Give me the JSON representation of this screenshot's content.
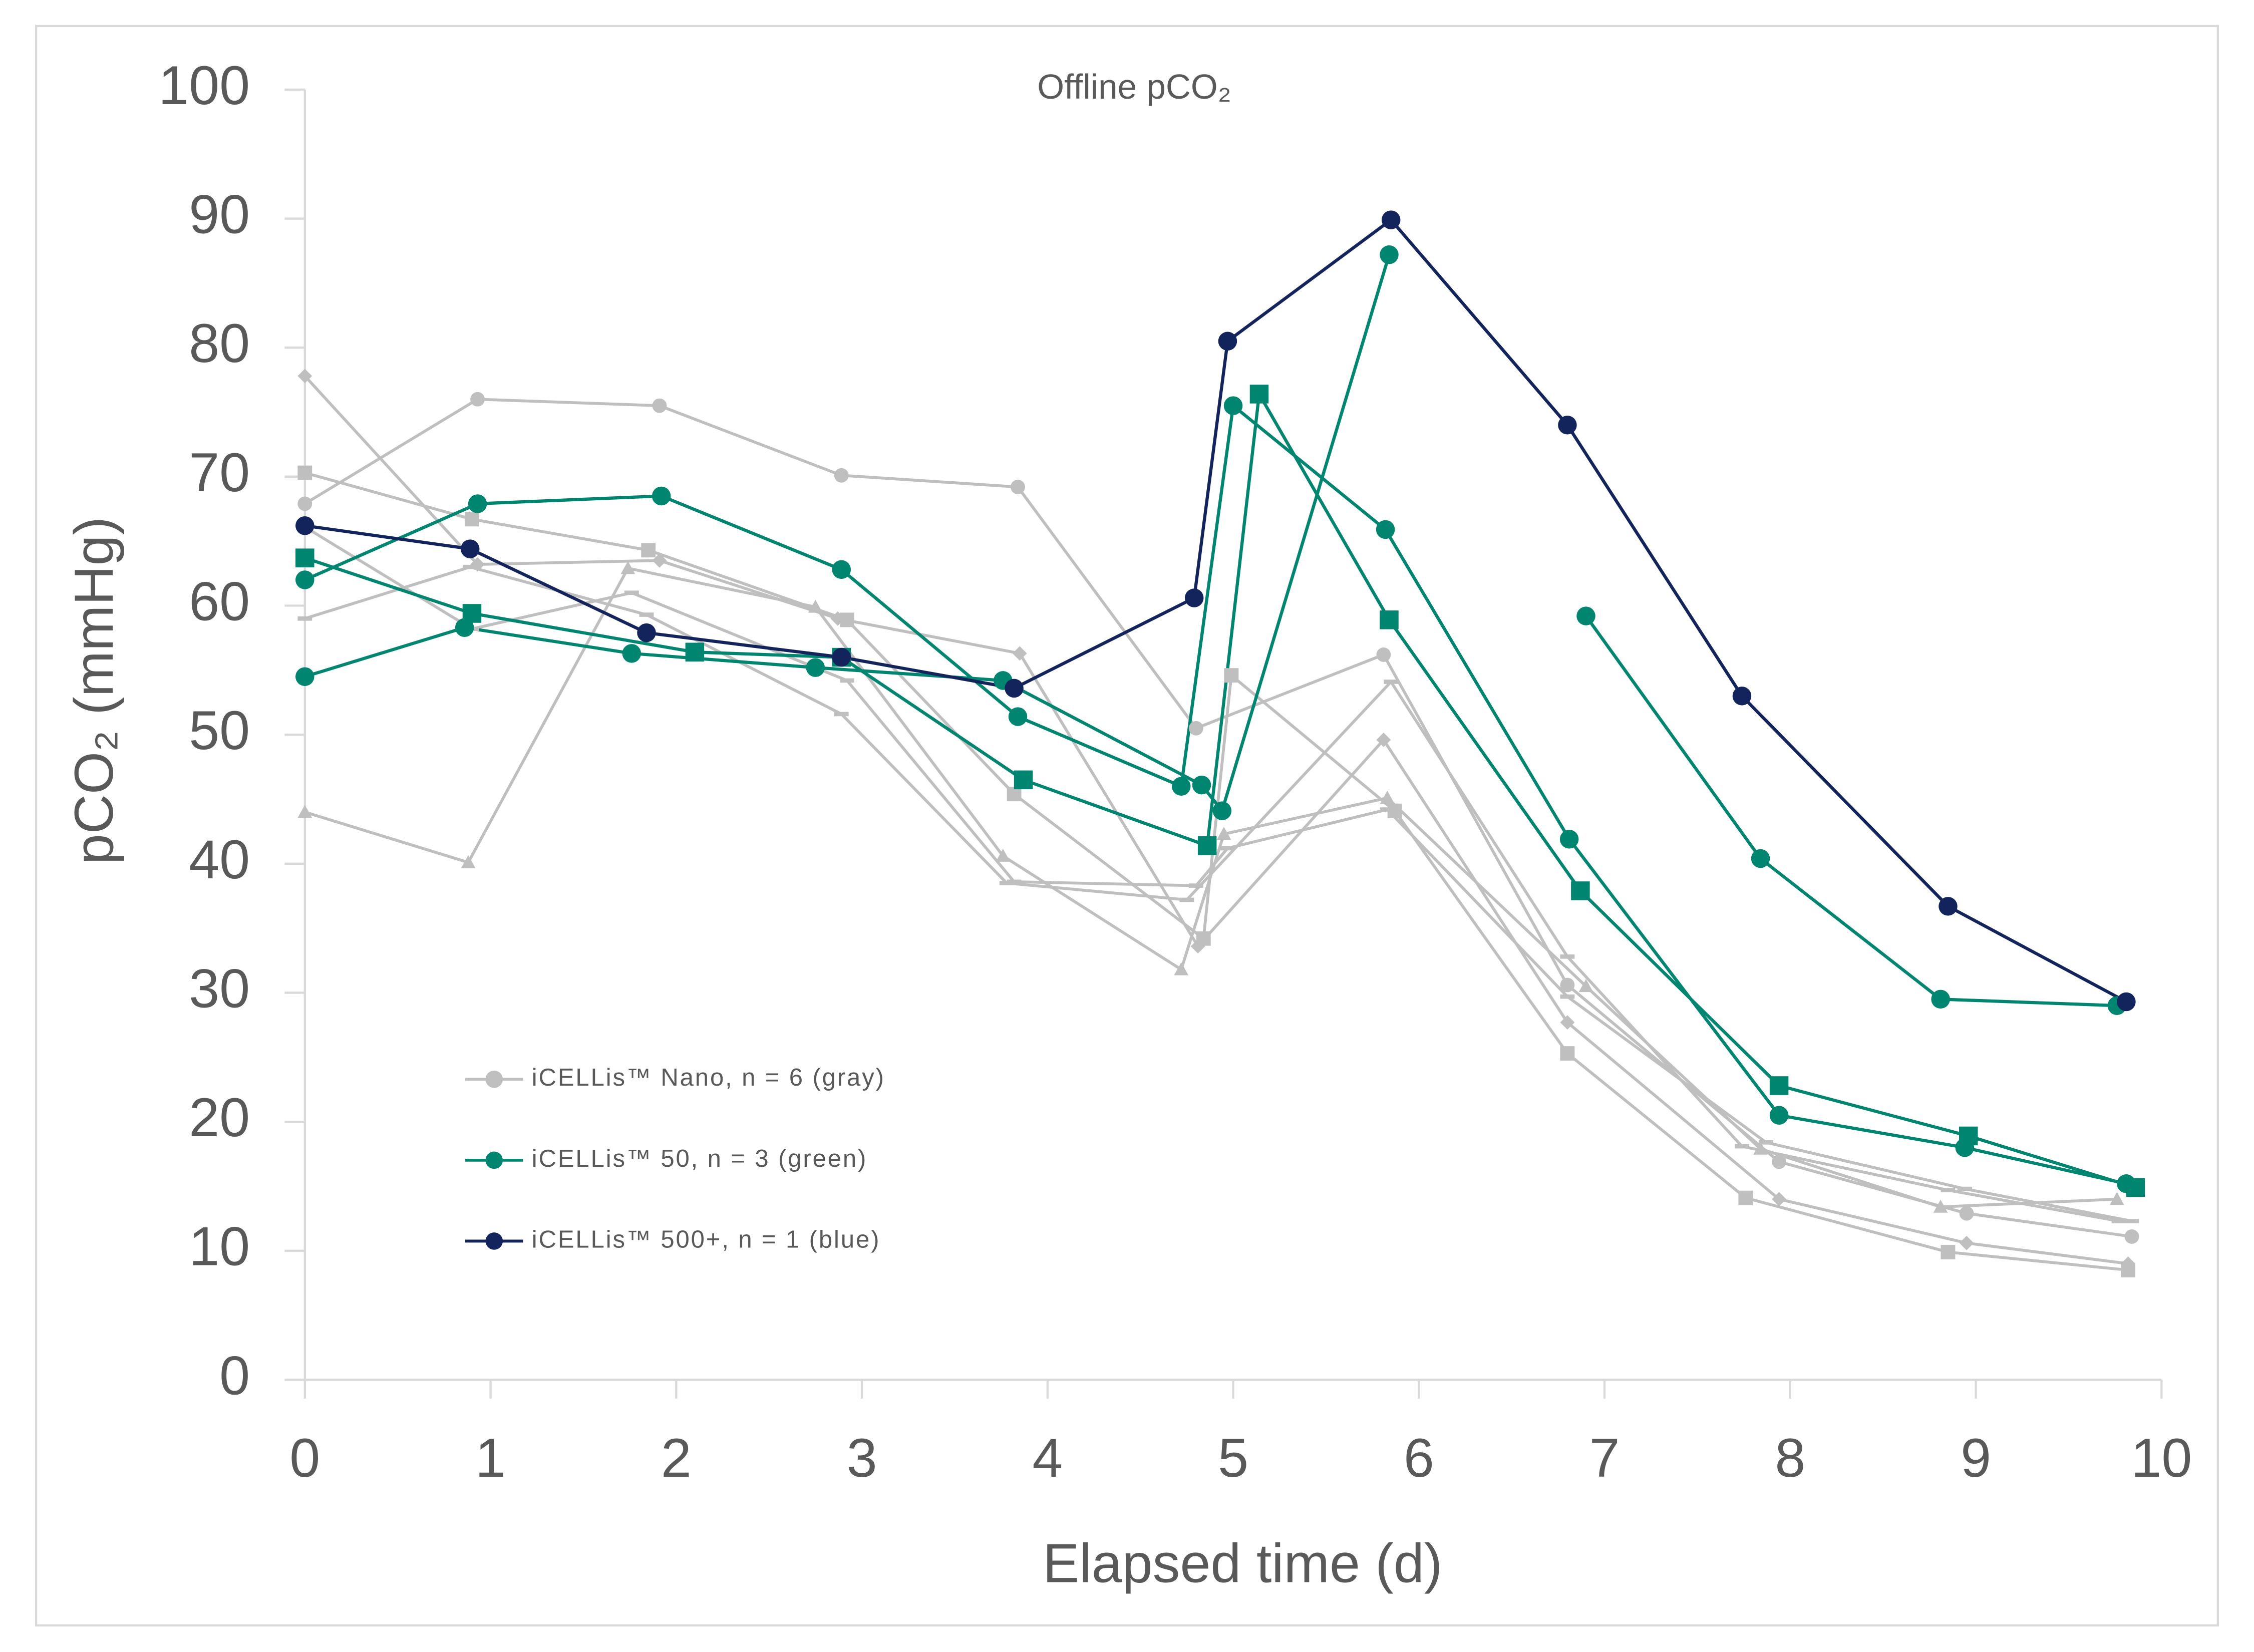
{
  "chart_data": {
    "type": "line",
    "title": "Offline pCO₂",
    "xlabel": "Elapsed time (d)",
    "ylabel": "pCO₂ (mmHg)",
    "xlim": [
      0,
      10
    ],
    "ylim": [
      0,
      100
    ],
    "xticks": [
      0,
      1,
      2,
      3,
      4,
      5,
      6,
      7,
      8,
      9,
      10
    ],
    "yticks": [
      0,
      10,
      20,
      30,
      40,
      50,
      60,
      70,
      80,
      90,
      100
    ],
    "grid": false,
    "legend": "lower left",
    "series": [
      {
        "name": "iCELLis™ Nano, n = 6 (gray)",
        "color": "#bfbfbf",
        "runs": [
          {
            "marker": "circle",
            "x": [
              0,
              0.93,
              1.91,
              2.89,
              3.84,
              4.8,
              5.81,
              6.8,
              7.94,
              8.95,
              9.84
            ],
            "values": [
              67.9,
              76.0,
              75.5,
              70.1,
              69.2,
              50.5,
              56.2,
              30.6,
              16.9,
              12.9,
              11.1
            ]
          },
          {
            "marker": "square",
            "x": [
              0,
              0.9,
              1.85,
              2.92,
              3.82,
              4.84,
              4.99,
              5.87,
              6.8,
              7.76,
              8.85,
              9.82
            ],
            "values": [
              70.3,
              66.7,
              64.3,
              58.9,
              45.4,
              34.2,
              54.6,
              44.1,
              25.3,
              14.1,
              9.9,
              8.5
            ]
          },
          {
            "marker": "diamond",
            "x": [
              0,
              0.93,
              1.91,
              2.87,
              3.85,
              4.81,
              5.81,
              6.8,
              7.94,
              8.95,
              9.82
            ],
            "values": [
              77.8,
              63.2,
              63.5,
              59.0,
              56.3,
              33.6,
              49.6,
              27.7,
              14.0,
              10.6,
              9.0
            ]
          },
          {
            "marker": "triangle",
            "x": [
              0,
              0.88,
              1.74,
              2.75,
              3.76,
              4.72,
              4.95,
              5.83,
              6.9,
              7.84,
              8.81,
              9.76
            ],
            "values": [
              44.0,
              40.1,
              62.9,
              59.9,
              40.6,
              31.8,
              42.3,
              45.1,
              30.5,
              17.9,
              13.4,
              14.0
            ]
          },
          {
            "marker": "dash",
            "x": [
              0,
              0.89,
              1.84,
              2.89,
              3.78,
              4.75,
              5.85,
              6.8,
              7.74,
              8.85,
              9.77
            ],
            "values": [
              59.0,
              63.0,
              59.3,
              51.6,
              38.5,
              37.2,
              54.1,
              32.8,
              18.1,
              14.7,
              12.3
            ]
          },
          {
            "marker": "dash",
            "x": [
              0,
              0.9,
              1.76,
              2.92,
              3.82,
              4.8,
              4.97,
              5.83,
              6.8,
              7.87,
              8.94,
              9.84
            ],
            "values": [
              66.1,
              58.2,
              61.0,
              54.2,
              38.6,
              38.3,
              41.2,
              44.2,
              29.7,
              18.4,
              14.8,
              12.3
            ]
          }
        ]
      },
      {
        "name": "iCELLis™ 50, n = 3 (green)",
        "color": "#008570",
        "runs": [
          {
            "marker": "circle",
            "x": [
              0,
              0.93,
              1.92,
              2.89,
              3.84,
              4.72,
              5.0,
              5.82,
              6.81,
              7.94,
              8.94,
              9.81
            ],
            "values": [
              62.0,
              67.9,
              68.5,
              62.8,
              51.4,
              46.0,
              75.5,
              65.9,
              41.9,
              20.5,
              18.0,
              15.2
            ]
          },
          {
            "marker": "circle",
            "x": [
              0,
              0.86,
              1.76,
              2.75,
              3.76,
              4.83,
              4.94,
              5.84,
              6.3,
              6.9,
              7.84,
              8.81,
              9.76
            ],
            "values": [
              54.5,
              58.3,
              56.3,
              55.2,
              54.2,
              46.1,
              44.1,
              87.2,
              null,
              59.2,
              40.4,
              29.5,
              29.0
            ]
          },
          {
            "marker": "square",
            "x": [
              0,
              0.9,
              2.1,
              2.89,
              3.87,
              4.86,
              5.14,
              5.84,
              6.87,
              7.94,
              8.96,
              9.86
            ],
            "values": [
              63.7,
              59.4,
              56.4,
              56.0,
              46.5,
              41.4,
              76.4,
              58.9,
              37.9,
              22.8,
              18.9,
              14.9
            ]
          }
        ]
      },
      {
        "name": "iCELLis™ 500+, n = 1 (blue)",
        "color": "#13235b",
        "runs": [
          {
            "marker": "circle",
            "x": [
              0,
              0.89,
              1.84,
              2.89,
              3.82,
              4.79,
              4.97,
              5.85,
              6.8,
              7.74,
              8.85,
              9.81
            ],
            "values": [
              66.2,
              64.4,
              57.9,
              56.0,
              53.6,
              60.6,
              80.5,
              89.9,
              74.0,
              53.0,
              36.7,
              29.3
            ]
          }
        ]
      }
    ]
  }
}
